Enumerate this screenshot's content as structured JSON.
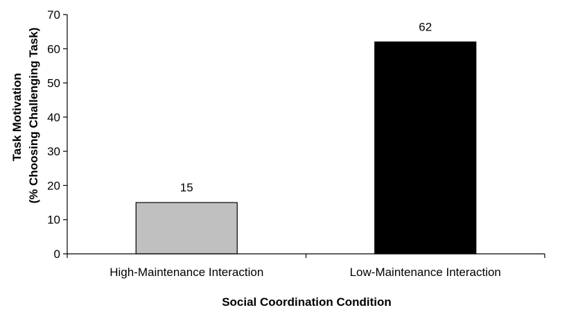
{
  "chart_data": {
    "type": "bar",
    "categories": [
      "High-Maintenance Interaction",
      "Low-Maintenance Interaction"
    ],
    "values": [
      15,
      62
    ],
    "data_labels": [
      "15",
      "62"
    ],
    "bar_colors": [
      "#c0c0c0",
      "#000000"
    ],
    "bar_outline": "#000000",
    "title": "",
    "xlabel": "Social Coordination Condition",
    "ylabel_lines": [
      "Task Motivation",
      "(% Choosing Challenging Task)"
    ],
    "ylim": [
      0,
      70
    ],
    "yticks": [
      0,
      10,
      20,
      30,
      40,
      50,
      60,
      70
    ],
    "grid": false,
    "legend": "none"
  }
}
